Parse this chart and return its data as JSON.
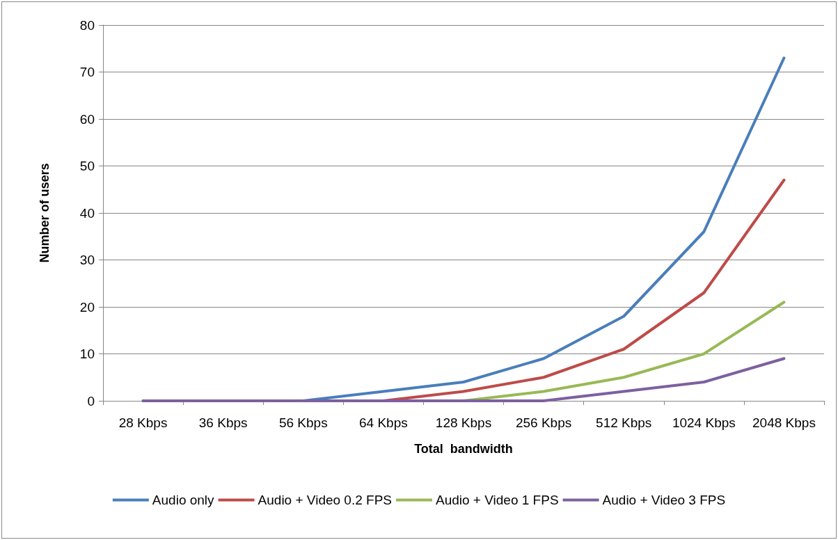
{
  "chart_data": {
    "type": "line",
    "xlabel": "Total  bandwidth",
    "ylabel": "Number of users",
    "categories": [
      "28 Kbps",
      "36 Kbps",
      "56 Kbps",
      "64 Kbps",
      "128 Kbps",
      "256 Kbps",
      "512 Kbps",
      "1024 Kbps",
      "2048 Kbps"
    ],
    "series": [
      {
        "name": "Audio only",
        "color": "#4a7ebb",
        "values": [
          0,
          0,
          0,
          2,
          4,
          9,
          18,
          36,
          73
        ]
      },
      {
        "name": "Audio + Video 0.2 FPS",
        "color": "#be4b48",
        "values": [
          null,
          null,
          0,
          0,
          2,
          5,
          11,
          23,
          47
        ]
      },
      {
        "name": "Audio + Video 1 FPS",
        "color": "#98b954",
        "values": [
          null,
          null,
          null,
          0,
          0,
          2,
          5,
          10,
          21
        ]
      },
      {
        "name": "Audio + Video 3 FPS",
        "color": "#7d60a0",
        "values": [
          0,
          0,
          0,
          0,
          0,
          0,
          2,
          4,
          9
        ]
      }
    ],
    "ylim": [
      0,
      80
    ],
    "yticks": [
      0,
      10,
      20,
      30,
      40,
      50,
      60,
      70,
      80
    ],
    "grid": "y",
    "legend": "bottom",
    "marker": "none",
    "line_style": "solid"
  }
}
